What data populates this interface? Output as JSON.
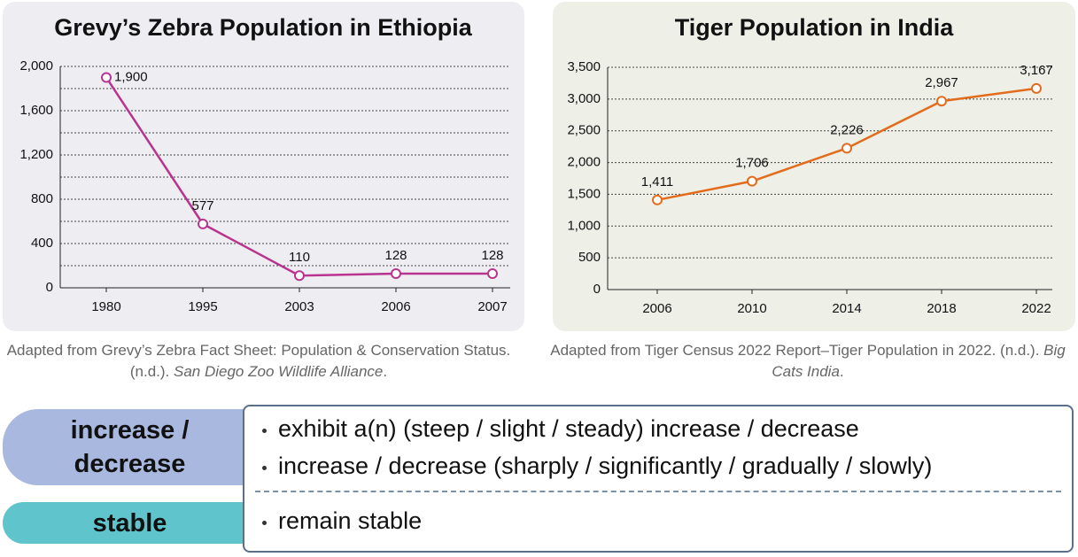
{
  "chart_data": [
    {
      "type": "line",
      "title": "Grevy’s Zebra Population in Ethiopia",
      "categories": [
        "1980",
        "1995",
        "2003",
        "2006",
        "2007"
      ],
      "values": [
        1900,
        577,
        110,
        128,
        128
      ],
      "value_labels": [
        "1,900",
        "577",
        "110",
        "128",
        "128"
      ],
      "color": "#b8348f",
      "ylim": [
        0,
        2000
      ],
      "yticks": [
        0,
        400,
        800,
        {
          "value": 1200,
          "label": "1,200"
        },
        {
          "value": 1600,
          "label": "1,600"
        },
        {
          "value": 2000,
          "label": "2,000"
        }
      ],
      "grid": true
    },
    {
      "type": "line",
      "title": "Tiger Population in India",
      "categories": [
        "2006",
        "2010",
        "2014",
        "2018",
        "2022"
      ],
      "values": [
        1411,
        1706,
        2226,
        2967,
        3167
      ],
      "value_labels": [
        "1,411",
        "1,706",
        "2,226",
        "2,967",
        "3,167"
      ],
      "color": "#e36c1c",
      "ylim": [
        0,
        3500
      ],
      "yticks": [
        0,
        500,
        {
          "value": 1000,
          "label": "1,000"
        },
        {
          "value": 1500,
          "label": "1,500"
        },
        {
          "value": 2000,
          "label": "2,000"
        },
        {
          "value": 2500,
          "label": "2,500"
        },
        {
          "value": 3000,
          "label": "3,000"
        },
        {
          "value": 3500,
          "label": "3,500"
        }
      ],
      "grid": true
    }
  ],
  "captions": [
    {
      "text": "Adapted from Grevy’s Zebra Fact Sheet: Population & Conservation Status. (n.d.).",
      "source": "San Diego Zoo Wildlife Alliance",
      "end": "."
    },
    {
      "text": "Adapted from Tiger Census 2022 Report–Tiger Population in 2022. (n.d.).",
      "source": "Big Cats India",
      "end": "."
    }
  ],
  "vocabulary": [
    {
      "label": "increase / decrease",
      "items": [
        "exhibit a(n) (steep / slight / steady) increase / decrease",
        "increase / decrease (sharply / significantly / gradually / slowly)"
      ]
    },
    {
      "label": "stable",
      "items": [
        "remain stable"
      ]
    }
  ]
}
